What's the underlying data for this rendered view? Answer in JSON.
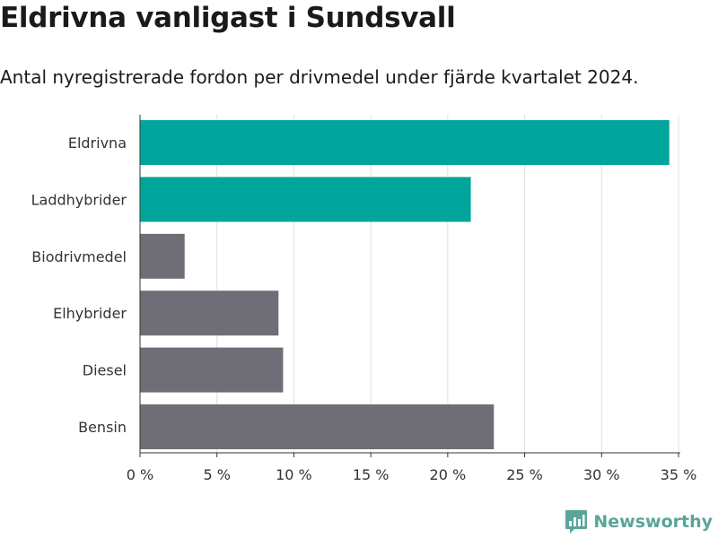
{
  "chart_data": {
    "type": "bar",
    "orientation": "horizontal",
    "title": "Eldrivna vanligast i Sundsvall",
    "subtitle": "Antal nyregistrerade fordon per drivmedel under fjärde kvartalet 2024.",
    "categories": [
      "Eldrivna",
      "Laddhybrider",
      "Biodrivmedel",
      "Elhybrider",
      "Diesel",
      "Bensin"
    ],
    "values": [
      34.4,
      21.5,
      2.9,
      9.0,
      9.3,
      23.0
    ],
    "value_unit": "%",
    "xlim": [
      0,
      35
    ],
    "ticks": [
      0,
      5,
      10,
      15,
      20,
      25,
      30,
      35
    ],
    "tick_labels": [
      "0 %",
      "5 %",
      "10 %",
      "15 %",
      "20 %",
      "25 %",
      "30 %",
      "35 %"
    ],
    "bar_colors": [
      "#00a59b",
      "#00a59b",
      "#6f6d75",
      "#6f6d75",
      "#6f6d75",
      "#6f6d75"
    ],
    "grid": true,
    "legend": "none"
  },
  "branding": {
    "logo_text": "Newsworthy",
    "logo_color": "#5aa49a"
  }
}
